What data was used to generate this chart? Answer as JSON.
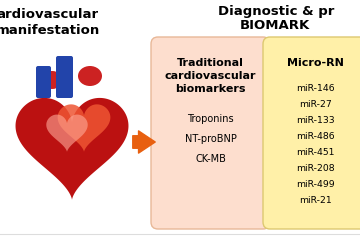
{
  "title_left_line1": "ardiovascular",
  "title_left_line2": "manifestation",
  "title_right_line1": "Diagnostic & pr",
  "title_right_line2": "BIOMARK",
  "box1_title_line1": "Traditional",
  "box1_title_line2": "cardiovascular",
  "box1_title_line3": "biomarkers",
  "box1_items": [
    "Troponins",
    "NT-proBNP",
    "CK-MB"
  ],
  "box2_title": "Micro-RN",
  "box2_items": [
    "miR-146",
    "miR-27",
    "miR-133",
    "miR-486",
    "miR-451",
    "miR-208",
    "miR-499",
    "miR-21"
  ],
  "box1_bg": "#FDDECE",
  "box1_edge": "#E8B898",
  "box2_bg": "#FFF0A8",
  "box2_edge": "#DDC870",
  "arrow_color": "#E86010",
  "background_color": "#FFFFFF",
  "title_fontsize": 8.5,
  "body_fontsize": 7.0,
  "bold_fontsize": 8.0,
  "title_bold_fontsize": 9.5
}
